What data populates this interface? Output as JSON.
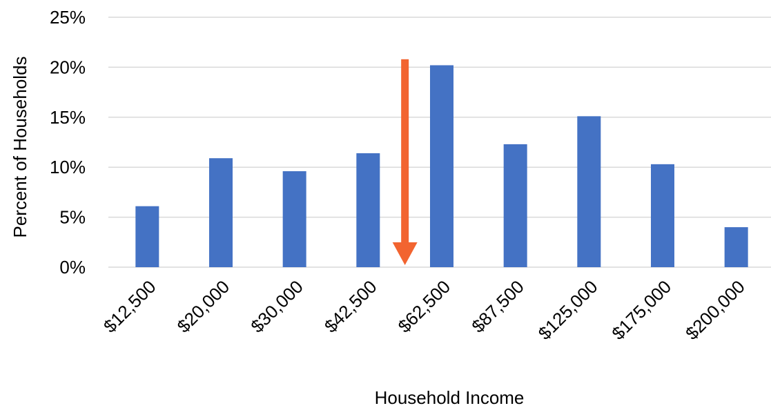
{
  "chart_data": {
    "type": "bar",
    "title": "",
    "xlabel": "Household Income",
    "ylabel": "Percent of Households",
    "categories": [
      "$12,500",
      "$20,000",
      "$30,000",
      "$42,500",
      "$62,500",
      "$87,500",
      "$125,000",
      "$175,000",
      "$200,000"
    ],
    "series": [
      {
        "values": [
          6.1,
          10.9,
          9.6,
          11.4,
          20.2,
          12.3,
          15.1,
          10.3,
          4.0
        ],
        "color": "#4472C4"
      }
    ],
    "ylim": [
      0,
      25
    ],
    "yticks": [
      0,
      5,
      10,
      15,
      20,
      25
    ],
    "ytick_labels": [
      "0%",
      "5%",
      "10%",
      "15%",
      "20%",
      "25%"
    ],
    "grid": true,
    "gridline_color": "#D9D9D9",
    "annotations": [
      {
        "type": "arrow",
        "direction": "down",
        "color": "#F26430",
        "x_position_between": [
          "$42,500",
          "$62,500"
        ],
        "y_from": 20.8,
        "y_to": 0
      }
    ]
  }
}
